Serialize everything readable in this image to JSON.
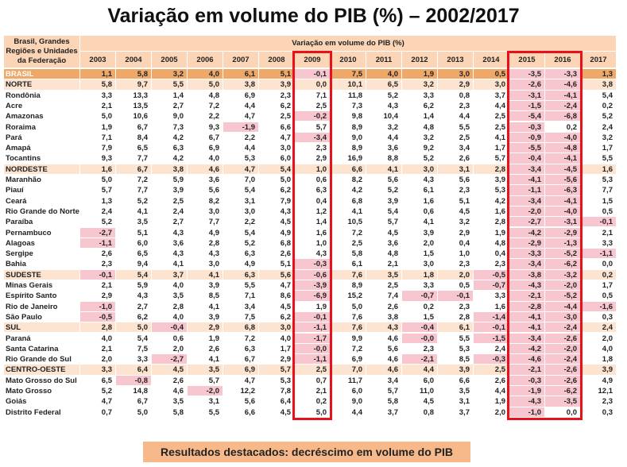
{
  "title": "Variação em volume do PIB (%) – 2002/2017",
  "table": {
    "stub_header": "Brasil, Grandes Regiões e Unidades da Federação",
    "span_header": "Variação em volume do PIB (%)",
    "columns": [
      2003,
      2004,
      2005,
      2006,
      2007,
      2008,
      2009,
      2010,
      2011,
      2012,
      2013,
      2014,
      2015,
      2016,
      2017
    ],
    "rows": [
      {
        "label": "BRASIL",
        "values": [
          "1,1",
          "5,8",
          "3,2",
          "4,0",
          "6,1",
          "5,1",
          "-0,1",
          "7,5",
          "4,0",
          "1,9",
          "3,0",
          "0,5",
          "-3,5",
          "-3,3",
          "1,3"
        ]
      },
      {
        "label": "NORTE",
        "values": [
          "5,8",
          "9,7",
          "5,5",
          "5,0",
          "3,8",
          "3,9",
          "0,0",
          "10,1",
          "6,5",
          "3,2",
          "2,9",
          "3,0",
          "-2,6",
          "-4,6",
          "3,8"
        ]
      },
      {
        "label": "Rondônia",
        "values": [
          "3,3",
          "13,3",
          "1,4",
          "4,8",
          "6,9",
          "2,3",
          "7,1",
          "11,8",
          "5,2",
          "3,3",
          "0,8",
          "3,7",
          "-3,1",
          "-4,1",
          "5,4"
        ]
      },
      {
        "label": "Acre",
        "values": [
          "2,1",
          "13,5",
          "2,7",
          "7,2",
          "4,4",
          "6,2",
          "2,5",
          "7,3",
          "4,3",
          "6,2",
          "2,3",
          "4,4",
          "-1,5",
          "-2,4",
          "0,2"
        ]
      },
      {
        "label": "Amazonas",
        "values": [
          "5,0",
          "10,6",
          "9,0",
          "2,2",
          "4,7",
          "2,5",
          "-0,2",
          "9,8",
          "10,4",
          "1,4",
          "4,4",
          "2,5",
          "-5,4",
          "-6,8",
          "5,2"
        ]
      },
      {
        "label": "Roraima",
        "values": [
          "1,9",
          "6,7",
          "7,3",
          "9,3",
          "-1,9",
          "6,6",
          "5,7",
          "8,9",
          "3,2",
          "4,8",
          "5,5",
          "2,5",
          "-0,3",
          "0,2",
          "2,4"
        ]
      },
      {
        "label": "Pará",
        "values": [
          "7,1",
          "8,4",
          "4,2",
          "6,7",
          "2,2",
          "4,7",
          "-3,4",
          "9,0",
          "4,4",
          "3,2",
          "2,5",
          "4,1",
          "-0,9",
          "-4,0",
          "3,2"
        ]
      },
      {
        "label": "Amapá",
        "values": [
          "7,9",
          "6,5",
          "6,3",
          "6,9",
          "4,4",
          "3,0",
          "2,3",
          "8,9",
          "3,6",
          "9,2",
          "3,4",
          "1,7",
          "-5,5",
          "-4,8",
          "1,7"
        ]
      },
      {
        "label": "Tocantins",
        "values": [
          "9,3",
          "7,7",
          "4,2",
          "4,0",
          "5,3",
          "6,0",
          "2,9",
          "16,9",
          "8,8",
          "5,2",
          "2,6",
          "5,7",
          "-0,4",
          "-4,1",
          "5,5"
        ]
      },
      {
        "label": "NORDESTE",
        "values": [
          "1,6",
          "6,7",
          "3,8",
          "4,6",
          "4,7",
          "5,4",
          "1,0",
          "6,6",
          "4,1",
          "3,0",
          "3,1",
          "2,8",
          "-3,4",
          "-4,5",
          "1,6"
        ]
      },
      {
        "label": "Maranhão",
        "values": [
          "5,0",
          "7,2",
          "5,9",
          "3,6",
          "7,0",
          "5,0",
          "0,6",
          "8,2",
          "5,6",
          "4,3",
          "5,6",
          "3,9",
          "-4,1",
          "-5,6",
          "5,3"
        ]
      },
      {
        "label": "Piauí",
        "values": [
          "5,7",
          "7,7",
          "3,9",
          "5,6",
          "5,4",
          "6,2",
          "6,3",
          "4,2",
          "5,2",
          "6,1",
          "2,3",
          "5,3",
          "-1,1",
          "-6,3",
          "7,7"
        ]
      },
      {
        "label": "Ceará",
        "values": [
          "1,3",
          "5,2",
          "2,5",
          "8,2",
          "3,1",
          "7,9",
          "0,4",
          "6,8",
          "3,9",
          "1,6",
          "5,1",
          "4,2",
          "-3,4",
          "-4,1",
          "1,5"
        ]
      },
      {
        "label": "Rio Grande do Norte",
        "values": [
          "2,4",
          "4,1",
          "2,4",
          "3,0",
          "3,0",
          "4,3",
          "1,2",
          "4,1",
          "5,4",
          "0,6",
          "4,5",
          "1,6",
          "-2,0",
          "-4,0",
          "0,5"
        ]
      },
      {
        "label": "Paraíba",
        "values": [
          "5,2",
          "3,5",
          "2,7",
          "7,7",
          "2,2",
          "4,5",
          "1,4",
          "10,5",
          "5,7",
          "4,1",
          "3,2",
          "2,8",
          "-2,7",
          "-3,1",
          "-0,1"
        ]
      },
      {
        "label": "Pernambuco",
        "values": [
          "-2,7",
          "5,1",
          "4,3",
          "4,9",
          "5,4",
          "4,9",
          "1,6",
          "7,2",
          "4,5",
          "3,9",
          "2,9",
          "1,9",
          "-4,2",
          "-2,9",
          "2,1"
        ]
      },
      {
        "label": "Alagoas",
        "values": [
          "-1,1",
          "6,0",
          "3,6",
          "2,8",
          "5,2",
          "6,8",
          "1,0",
          "2,5",
          "3,6",
          "2,0",
          "0,4",
          "4,8",
          "-2,9",
          "-1,3",
          "3,3"
        ]
      },
      {
        "label": "Sergipe",
        "values": [
          "2,6",
          "6,5",
          "4,3",
          "4,3",
          "6,3",
          "2,6",
          "4,3",
          "5,8",
          "4,8",
          "1,5",
          "1,0",
          "0,4",
          "-3,3",
          "-5,2",
          "-1,1"
        ]
      },
      {
        "label": "Bahia",
        "values": [
          "2,3",
          "9,4",
          "4,1",
          "3,0",
          "4,9",
          "5,1",
          "-0,3",
          "6,1",
          "2,1",
          "3,0",
          "2,3",
          "2,3",
          "-3,4",
          "-6,2",
          "0,0"
        ]
      },
      {
        "label": "SUDESTE",
        "values": [
          "-0,1",
          "5,4",
          "3,7",
          "4,1",
          "6,3",
          "5,6",
          "-0,6",
          "7,6",
          "3,5",
          "1,8",
          "2,0",
          "-0,5",
          "-3,8",
          "-3,2",
          "0,2"
        ]
      },
      {
        "label": "Minas Gerais",
        "values": [
          "2,1",
          "5,9",
          "4,0",
          "3,9",
          "5,5",
          "4,7",
          "-3,9",
          "8,9",
          "2,5",
          "3,3",
          "0,5",
          "-0,7",
          "-4,3",
          "-2,0",
          "1,7"
        ]
      },
      {
        "label": "Espírito Santo",
        "values": [
          "2,9",
          "4,3",
          "3,5",
          "8,5",
          "7,1",
          "8,6",
          "-6,9",
          "15,2",
          "7,4",
          "-0,7",
          "-0,1",
          "3,3",
          "-2,1",
          "-5,2",
          "0,5"
        ]
      },
      {
        "label": "Rio de Janeiro",
        "values": [
          "-1,0",
          "2,7",
          "2,8",
          "4,1",
          "3,4",
          "4,5",
          "1,9",
          "5,0",
          "2,6",
          "0,2",
          "2,3",
          "1,6",
          "-2,8",
          "-4,4",
          "-1,6"
        ]
      },
      {
        "label": "São Paulo",
        "values": [
          "-0,5",
          "6,2",
          "4,0",
          "3,9",
          "7,5",
          "6,2",
          "-0,1",
          "7,6",
          "3,8",
          "1,5",
          "2,8",
          "-1,4",
          "-4,1",
          "-3,0",
          "0,3"
        ]
      },
      {
        "label": "SUL",
        "values": [
          "2,8",
          "5,0",
          "-0,4",
          "2,9",
          "6,8",
          "3,0",
          "-1,1",
          "7,6",
          "4,3",
          "-0,4",
          "6,1",
          "-0,1",
          "-4,1",
          "-2,4",
          "2,4"
        ]
      },
      {
        "label": "Paraná",
        "values": [
          "4,0",
          "5,4",
          "0,6",
          "1,9",
          "7,2",
          "4,0",
          "-1,7",
          "9,9",
          "4,6",
          "-0,0",
          "5,5",
          "-1,5",
          "-3,4",
          "-2,6",
          "2,0"
        ]
      },
      {
        "label": "Santa Catarina",
        "values": [
          "2,1",
          "7,5",
          "2,0",
          "2,6",
          "6,3",
          "1,7",
          "-0,0",
          "7,2",
          "5,6",
          "2,3",
          "5,3",
          "2,4",
          "-4,2",
          "-2,0",
          "4,0"
        ]
      },
      {
        "label": "Rio Grande do Sul",
        "values": [
          "2,0",
          "3,3",
          "-2,7",
          "4,1",
          "6,7",
          "2,9",
          "-1,1",
          "6,9",
          "4,6",
          "-2,1",
          "8,5",
          "-0,3",
          "-4,6",
          "-2,4",
          "1,8"
        ]
      },
      {
        "label": "CENTRO-OESTE",
        "values": [
          "3,3",
          "6,4",
          "4,5",
          "3,5",
          "6,9",
          "5,7",
          "2,5",
          "7,0",
          "4,6",
          "4,4",
          "3,9",
          "2,5",
          "-2,1",
          "-2,6",
          "3,9"
        ]
      },
      {
        "label": "Mato Grosso do Sul",
        "values": [
          "6,5",
          "-0,8",
          "2,6",
          "5,7",
          "4,7",
          "5,3",
          "0,7",
          "11,7",
          "3,4",
          "6,0",
          "6,6",
          "2,6",
          "-0,3",
          "-2,6",
          "4,9"
        ]
      },
      {
        "label": "Mato Grosso",
        "values": [
          "5,2",
          "14,8",
          "4,6",
          "-2,0",
          "12,2",
          "7,8",
          "2,1",
          "6,0",
          "5,7",
          "11,0",
          "3,5",
          "4,4",
          "-1,9",
          "-6,2",
          "12,1"
        ]
      },
      {
        "label": "Goiás",
        "values": [
          "4,7",
          "6,7",
          "3,5",
          "3,1",
          "5,6",
          "6,4",
          "0,2",
          "9,0",
          "5,8",
          "4,5",
          "3,1",
          "1,9",
          "-4,3",
          "-3,5",
          "2,3"
        ]
      },
      {
        "label": "Distrito Federal",
        "values": [
          "0,7",
          "5,0",
          "5,8",
          "5,5",
          "6,6",
          "4,5",
          "5,0",
          "4,4",
          "3,7",
          "0,8",
          "3,7",
          "2,0",
          "-1,0",
          "0,0",
          "0,3"
        ]
      }
    ]
  },
  "footer": "Resultados destacados: decréscimo em volume do PIB"
}
